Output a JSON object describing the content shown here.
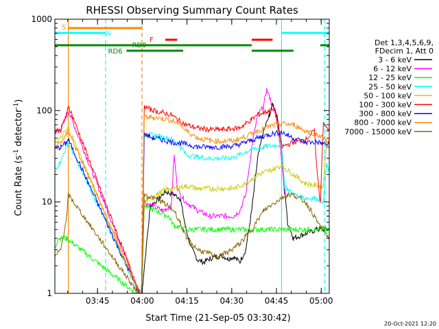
{
  "chart_data": {
    "type": "line",
    "title": "RHESSI Observing Summary Count Rates",
    "xlabel": "Start Time (21-Sep-05 03:30:42)",
    "ylabel_main": "Count Rate (s",
    "ylabel_sup1": "-1",
    "ylabel_mid": " detector",
    "ylabel_sup2": "-1",
    "ylabel_end": ")",
    "yscale": "log",
    "ylim": [
      1,
      1000
    ],
    "xlim_minutes": [
      0,
      92
    ],
    "x_ticks": [
      "03:45",
      "04:00",
      "04:15",
      "04:30",
      "04:45",
      "05:00"
    ],
    "x_tick_minutes": [
      14.3,
      29.3,
      44.3,
      59.3,
      74.3,
      89.3
    ],
    "y_ticks": [
      "1",
      "10",
      "100",
      "1000"
    ],
    "y_tick_values": [
      1,
      10,
      100,
      1000
    ],
    "legend_header": [
      "Det 1,3,4,5,6,9,",
      "FDecim 1, Att 0"
    ],
    "footer_date": "20-Oct-2021 12:20",
    "series": [
      {
        "name": "3 - 6 keV",
        "color": "#000000",
        "points": [
          [
            29,
            0.9
          ],
          [
            32,
            9
          ],
          [
            35,
            11
          ],
          [
            37,
            13
          ],
          [
            40,
            12
          ],
          [
            42,
            11
          ],
          [
            44,
            5
          ],
          [
            46,
            3
          ],
          [
            48,
            2.3
          ],
          [
            50,
            2.2
          ],
          [
            52,
            2.4
          ],
          [
            54,
            2.5
          ],
          [
            56,
            2.6
          ],
          [
            58,
            2.4
          ],
          [
            60,
            2.5
          ],
          [
            62,
            2.2
          ],
          [
            64,
            3
          ],
          [
            66,
            8
          ],
          [
            68,
            30
          ],
          [
            70,
            60
          ],
          [
            72,
            90
          ],
          [
            73,
            118
          ],
          [
            74,
            100
          ],
          [
            75,
            70
          ],
          [
            76,
            40
          ],
          [
            77,
            15
          ],
          [
            78,
            6
          ],
          [
            80,
            4
          ],
          [
            84,
            4.5
          ],
          [
            88,
            5
          ],
          [
            92,
            5
          ]
        ]
      },
      {
        "name": "6 - 12 keV",
        "color": "#ff00ff",
        "points": [
          [
            0,
            60
          ],
          [
            2,
            62
          ],
          [
            4,
            90
          ],
          [
            4.5,
            100
          ],
          [
            29,
            0.9
          ],
          [
            30,
            10
          ],
          [
            33,
            9
          ],
          [
            36,
            8
          ],
          [
            39,
            9
          ],
          [
            40,
            32
          ],
          [
            41,
            15
          ],
          [
            42,
            12
          ],
          [
            44,
            10
          ],
          [
            48,
            8
          ],
          [
            52,
            7
          ],
          [
            56,
            7
          ],
          [
            60,
            7
          ],
          [
            62,
            8
          ],
          [
            64,
            12
          ],
          [
            66,
            40
          ],
          [
            68,
            90
          ],
          [
            70,
            110
          ],
          [
            71,
            170
          ],
          [
            72,
            140
          ],
          [
            73,
            110
          ],
          [
            74,
            90
          ],
          [
            75,
            60
          ],
          [
            76,
            30
          ],
          [
            77,
            12
          ]
        ]
      },
      {
        "name": "12 - 25 keV",
        "color": "#00ff00",
        "points": [
          [
            0,
            3
          ],
          [
            1,
            4
          ],
          [
            2,
            4
          ],
          [
            4,
            4
          ],
          [
            29,
            0.9
          ],
          [
            30,
            9
          ],
          [
            34,
            8
          ],
          [
            38,
            7
          ],
          [
            40,
            5.5
          ],
          [
            44,
            5
          ],
          [
            50,
            5
          ],
          [
            56,
            5
          ],
          [
            60,
            5
          ],
          [
            64,
            5
          ],
          [
            68,
            5
          ],
          [
            72,
            5
          ],
          [
            76,
            5
          ],
          [
            80,
            5
          ],
          [
            84,
            5
          ],
          [
            88,
            5
          ],
          [
            92,
            5
          ]
        ]
      },
      {
        "name": "25 - 50 keV",
        "color": "#00ffff",
        "points": [
          [
            0,
            23
          ],
          [
            2,
            28
          ],
          [
            4,
            42
          ],
          [
            4.5,
            45
          ],
          [
            29,
            0.9
          ],
          [
            30,
            55
          ],
          [
            34,
            53
          ],
          [
            38,
            50
          ],
          [
            41,
            45
          ],
          [
            44,
            33
          ],
          [
            48,
            31
          ],
          [
            52,
            30
          ],
          [
            56,
            30
          ],
          [
            60,
            31
          ],
          [
            62,
            33
          ],
          [
            66,
            38
          ],
          [
            70,
            40
          ],
          [
            74,
            42
          ],
          [
            76,
            43
          ],
          [
            77,
            15
          ],
          [
            80,
            12
          ],
          [
            84,
            11
          ],
          [
            88,
            11
          ],
          [
            90,
            10
          ],
          [
            91,
            25
          ],
          [
            92,
            22
          ]
        ]
      },
      {
        "name": "50 - 100 keV",
        "color": "#cccc00",
        "points": [
          [
            0,
            45
          ],
          [
            2,
            50
          ],
          [
            4,
            62
          ],
          [
            4.5,
            65
          ],
          [
            29,
            0.9
          ],
          [
            30,
            10
          ],
          [
            34,
            12
          ],
          [
            38,
            14
          ],
          [
            40,
            14
          ],
          [
            44,
            15
          ],
          [
            48,
            14
          ],
          [
            52,
            14
          ],
          [
            56,
            14
          ],
          [
            60,
            14
          ],
          [
            64,
            16
          ],
          [
            68,
            20
          ],
          [
            72,
            22
          ],
          [
            76,
            25
          ],
          [
            80,
            20
          ],
          [
            84,
            16
          ],
          [
            88,
            15
          ],
          [
            90,
            15
          ],
          [
            91,
            45
          ],
          [
            92,
            48
          ]
        ]
      },
      {
        "name": "100 - 300 keV",
        "color": "#ff0000",
        "points": [
          [
            0,
            58
          ],
          [
            2,
            62
          ],
          [
            4,
            90
          ],
          [
            4.5,
            115
          ],
          [
            29,
            0.9
          ],
          [
            30,
            110
          ],
          [
            33,
            100
          ],
          [
            36,
            95
          ],
          [
            39,
            90
          ],
          [
            41,
            80
          ],
          [
            44,
            70
          ],
          [
            48,
            64
          ],
          [
            52,
            62
          ],
          [
            56,
            62
          ],
          [
            60,
            63
          ],
          [
            62,
            65
          ],
          [
            64,
            72
          ],
          [
            66,
            80
          ],
          [
            68,
            90
          ],
          [
            70,
            95
          ],
          [
            72,
            100
          ],
          [
            74,
            100
          ],
          [
            76,
            40
          ],
          [
            80,
            45
          ],
          [
            84,
            48
          ],
          [
            87,
            60
          ],
          [
            88,
            20
          ],
          [
            89,
            10
          ],
          [
            90,
            70
          ],
          [
            92,
            62
          ]
        ]
      },
      {
        "name": "300 - 800 keV",
        "color": "#0000ff",
        "points": [
          [
            0,
            38
          ],
          [
            2,
            40
          ],
          [
            4,
            45
          ],
          [
            4.5,
            48
          ],
          [
            29,
            0.9
          ],
          [
            30,
            55
          ],
          [
            33,
            50
          ],
          [
            36,
            48
          ],
          [
            39,
            45
          ],
          [
            42,
            44
          ],
          [
            44,
            43
          ],
          [
            48,
            40
          ],
          [
            52,
            40
          ],
          [
            56,
            40
          ],
          [
            60,
            41
          ],
          [
            64,
            45
          ],
          [
            68,
            50
          ],
          [
            72,
            55
          ],
          [
            76,
            58
          ],
          [
            80,
            50
          ],
          [
            84,
            45
          ],
          [
            88,
            45
          ],
          [
            92,
            42
          ]
        ]
      },
      {
        "name": "800 - 7000 keV",
        "color": "#ff8800",
        "points": [
          [
            0,
            40
          ],
          [
            2,
            45
          ],
          [
            4,
            55
          ],
          [
            4.5,
            60
          ],
          [
            29,
            0.9
          ],
          [
            30,
            85
          ],
          [
            33,
            84
          ],
          [
            36,
            82
          ],
          [
            39,
            78
          ],
          [
            42,
            70
          ],
          [
            44,
            60
          ],
          [
            48,
            50
          ],
          [
            52,
            47
          ],
          [
            56,
            46
          ],
          [
            60,
            47
          ],
          [
            64,
            52
          ],
          [
            68,
            60
          ],
          [
            72,
            67
          ],
          [
            76,
            72
          ],
          [
            80,
            70
          ],
          [
            84,
            60
          ],
          [
            88,
            55
          ],
          [
            92,
            45
          ]
        ]
      },
      {
        "name": "7000 - 15000 keV",
        "color": "#886600",
        "points": [
          [
            0,
            2.5
          ],
          [
            2,
            3
          ],
          [
            4,
            7
          ],
          [
            4.5,
            12
          ],
          [
            29,
            0.9
          ],
          [
            30,
            12
          ],
          [
            33,
            11
          ],
          [
            36,
            10
          ],
          [
            40,
            8
          ],
          [
            42,
            6
          ],
          [
            44,
            4
          ],
          [
            48,
            3
          ],
          [
            52,
            2.7
          ],
          [
            54,
            2.5
          ],
          [
            58,
            2.8
          ],
          [
            62,
            3.5
          ],
          [
            66,
            5
          ],
          [
            70,
            8
          ],
          [
            72,
            9
          ],
          [
            74,
            10
          ],
          [
            76,
            11
          ],
          [
            78,
            12
          ],
          [
            80,
            12
          ],
          [
            82,
            11
          ],
          [
            84,
            10
          ],
          [
            86,
            8
          ],
          [
            88,
            6
          ],
          [
            90,
            5
          ],
          [
            92,
            4
          ]
        ]
      }
    ],
    "state_bars": [
      {
        "label": "S",
        "color": "#ff8800",
        "row": "top",
        "segments": [
          [
            4.5,
            29.2
          ]
        ]
      },
      {
        "label": "N",
        "color": "#00ffff",
        "row": "second",
        "segments": [
          [
            0,
            17
          ],
          [
            76,
            92
          ]
        ]
      },
      {
        "label": "F",
        "color": "#ff0000",
        "row": "third",
        "segments": [
          [
            37,
            41
          ],
          [
            66,
            73
          ]
        ]
      },
      {
        "label": "RD0",
        "color": "#008800",
        "row": "fourth",
        "segments": [
          [
            0,
            43
          ],
          [
            43,
            66
          ],
          [
            89,
            92
          ]
        ]
      },
      {
        "label": "RD6",
        "color": "#008800",
        "row": "fifth",
        "segments": [
          [
            24,
            43
          ],
          [
            66,
            80
          ]
        ]
      }
    ],
    "vertical_markers": [
      {
        "minute": 4.5,
        "color": "#ff8800",
        "style": "solid"
      },
      {
        "minute": 17,
        "color": "#00ffff",
        "style": "dashed"
      },
      {
        "minute": 29.2,
        "color": "#ff8800",
        "style": "dashed"
      },
      {
        "minute": 76,
        "color": "#00ffff",
        "style": "solid"
      },
      {
        "minute": 90.5,
        "color": "#00ffff",
        "style": "dashed"
      },
      {
        "minute": 0,
        "color": "#00ffff",
        "style": "solid"
      }
    ]
  }
}
